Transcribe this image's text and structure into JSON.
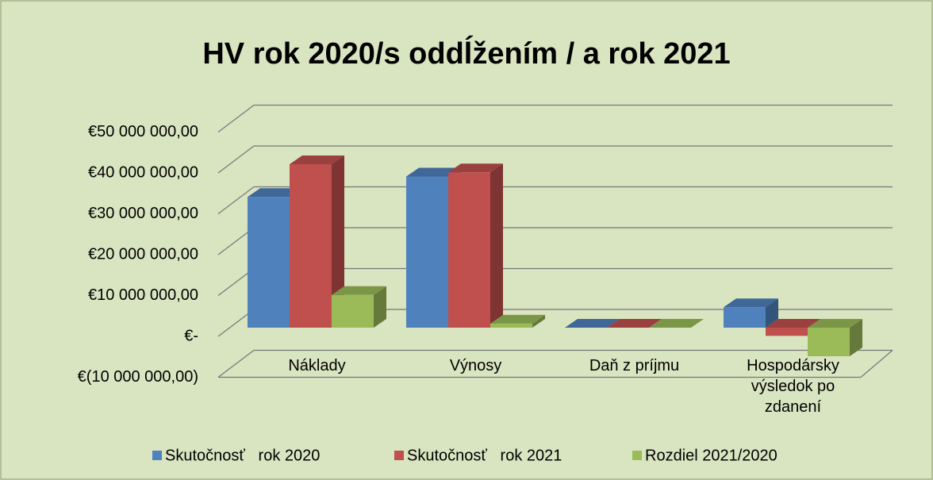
{
  "chart_data": {
    "type": "bar3d",
    "title": "HV rok 2020/s oddĺžením / a rok 2021",
    "categories": [
      "Náklady",
      "Výnosy",
      "Daň z príjmu",
      "Hospodársky výsledok po zdanení"
    ],
    "series": [
      {
        "name": "Skutočnosť   rok 2020",
        "color": "#4f81bd",
        "values": [
          32000000,
          37000000,
          0,
          5000000
        ]
      },
      {
        "name": "Skutočnosť   rok 2021",
        "color": "#c0504d",
        "values": [
          40000000,
          38000000,
          0,
          -2000000
        ]
      },
      {
        "name": "Rozdiel 2021/2020",
        "color": "#9bbb59",
        "values": [
          8000000,
          1000000,
          0,
          -7000000
        ]
      }
    ],
    "ylim": [
      -10000000,
      50000000
    ],
    "yticks": [
      {
        "value": -10000000,
        "label": "€(10 000 000,00)"
      },
      {
        "value": 0,
        "label": "€-"
      },
      {
        "value": 10000000,
        "label": "€10 000 000,00"
      },
      {
        "value": 20000000,
        "label": "€20 000 000,00"
      },
      {
        "value": 30000000,
        "label": "€30 000 000,00"
      },
      {
        "value": 40000000,
        "label": "€40 000 000,00"
      },
      {
        "value": 50000000,
        "label": "€50 000 000,00"
      }
    ],
    "grid": true,
    "legend": "bottom"
  }
}
